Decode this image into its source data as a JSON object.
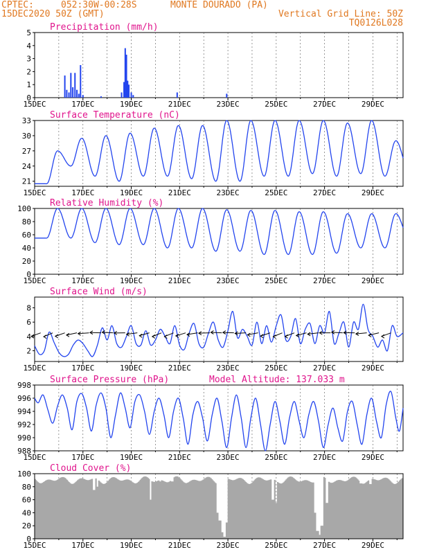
{
  "header": {
    "source": "CPTEC:",
    "coords": "052:30W-00:28S",
    "station": "MONTE DOURADO (PA)",
    "datetime": "15DEC2020 50Z (GMT)",
    "grid_line": "Vertical Grid Line: 50Z",
    "code": "TQ0126L028"
  },
  "colors": {
    "header": "#e07820",
    "title": "#e0148c",
    "line": "#2244ee",
    "cloud": "#a8a8a8",
    "axis": "#000000"
  },
  "chart_data": [
    {
      "name": "precipitation",
      "type": "bar",
      "title": "Precipitation (mm/h)",
      "ylim": [
        0,
        5
      ],
      "yticks": [
        0,
        1,
        2,
        3,
        4,
        5
      ],
      "xlabels": [
        "15DEC",
        "17DEC",
        "19DEC",
        "21DEC",
        "23DEC",
        "25DEC",
        "27DEC",
        "29DEC"
      ],
      "x_day_range": [
        15,
        30.25
      ],
      "bars": [
        {
          "day": 16.25,
          "value": 1.7
        },
        {
          "day": 16.33,
          "value": 0.6
        },
        {
          "day": 16.42,
          "value": 0.4
        },
        {
          "day": 16.5,
          "value": 1.9
        },
        {
          "day": 16.58,
          "value": 0.8
        },
        {
          "day": 16.67,
          "value": 1.9
        },
        {
          "day": 16.75,
          "value": 0.6
        },
        {
          "day": 16.83,
          "value": 0.3
        },
        {
          "day": 16.9,
          "value": 2.5
        },
        {
          "day": 17.0,
          "value": 0.2
        },
        {
          "day": 17.75,
          "value": 0.1
        },
        {
          "day": 18.6,
          "value": 0.4
        },
        {
          "day": 18.7,
          "value": 1.2
        },
        {
          "day": 18.75,
          "value": 3.8
        },
        {
          "day": 18.8,
          "value": 3.3
        },
        {
          "day": 18.85,
          "value": 1.3
        },
        {
          "day": 18.9,
          "value": 1.0
        },
        {
          "day": 19.0,
          "value": 0.4
        },
        {
          "day": 19.08,
          "value": 0.2
        },
        {
          "day": 20.9,
          "value": 0.4
        },
        {
          "day": 22.95,
          "value": 0.3
        }
      ]
    },
    {
      "name": "temperature",
      "type": "line",
      "title": "Surface Temperature (nC)",
      "ylim": [
        20,
        33
      ],
      "yticks": [
        21,
        24,
        27,
        30,
        33
      ],
      "xlabels": [
        "15DEC",
        "17DEC",
        "19DEC",
        "21DEC",
        "23DEC",
        "25DEC",
        "27DEC",
        "29DEC"
      ],
      "x_day_range": [
        15,
        30.25
      ],
      "cycles": [
        [
          15.5,
          21.5,
          20.5
        ],
        [
          16.5,
          27,
          24
        ],
        [
          17.5,
          29.5,
          22
        ],
        [
          18.5,
          30,
          21
        ],
        [
          19.5,
          30.5,
          22
        ],
        [
          20.5,
          31.5,
          22
        ],
        [
          21.5,
          32,
          21.5
        ],
        [
          22.5,
          32,
          21
        ],
        [
          23.5,
          33,
          21
        ],
        [
          24.5,
          33,
          22
        ],
        [
          25.5,
          33,
          22
        ],
        [
          26.5,
          33,
          22.5
        ],
        [
          27.5,
          33,
          22
        ],
        [
          28.5,
          32.5,
          22.5
        ],
        [
          29.5,
          33,
          22
        ],
        [
          30.5,
          29,
          23
        ]
      ]
    },
    {
      "name": "humidity",
      "type": "line",
      "title": "Relative Humidity (%)",
      "ylim": [
        0,
        100
      ],
      "yticks": [
        0,
        20,
        40,
        60,
        80,
        100
      ],
      "xlabels": [
        "15DEC",
        "17DEC",
        "19DEC",
        "21DEC",
        "23DEC",
        "25DEC",
        "27DEC",
        "29DEC"
      ],
      "x_day_range": [
        15,
        30.25
      ],
      "cycles": [
        [
          15.5,
          100,
          55
        ],
        [
          16.5,
          100,
          55
        ],
        [
          17.5,
          100,
          48
        ],
        [
          18.5,
          100,
          45
        ],
        [
          19.5,
          100,
          45
        ],
        [
          20.5,
          100,
          40
        ],
        [
          21.5,
          100,
          40
        ],
        [
          22.5,
          100,
          35
        ],
        [
          23.5,
          98,
          35
        ],
        [
          24.5,
          97,
          30
        ],
        [
          25.5,
          97,
          30
        ],
        [
          26.5,
          95,
          30
        ],
        [
          27.5,
          95,
          32
        ],
        [
          28.5,
          92,
          40
        ],
        [
          29.5,
          92,
          40
        ],
        [
          30.5,
          92,
          55
        ]
      ]
    },
    {
      "name": "wind",
      "type": "line",
      "title": "Surface Wind (m/s)",
      "ylim": [
        0.5,
        9.5
      ],
      "yticks": [
        2,
        4,
        6,
        8
      ],
      "xlabels": [
        "15DEC",
        "17DEC",
        "19DEC",
        "21DEC",
        "23DEC",
        "25DEC",
        "27DEC",
        "29DEC"
      ],
      "x_day_range": [
        15,
        30.25
      ],
      "points": [
        [
          15.0,
          2.7
        ],
        [
          15.2,
          1.5
        ],
        [
          15.4,
          2.0
        ],
        [
          15.6,
          4.6
        ],
        [
          15.8,
          3.2
        ],
        [
          16.0,
          1.8
        ],
        [
          16.2,
          1.2
        ],
        [
          16.4,
          1.5
        ],
        [
          16.6,
          2.8
        ],
        [
          16.8,
          3.5
        ],
        [
          17.0,
          3.0
        ],
        [
          17.2,
          2.0
        ],
        [
          17.4,
          1.2
        ],
        [
          17.6,
          2.8
        ],
        [
          17.8,
          5.2
        ],
        [
          18.0,
          3.5
        ],
        [
          18.2,
          5.5
        ],
        [
          18.4,
          3.0
        ],
        [
          18.6,
          2.5
        ],
        [
          18.8,
          4.0
        ],
        [
          19.0,
          5.5
        ],
        [
          19.2,
          3.0
        ],
        [
          19.4,
          2.8
        ],
        [
          19.6,
          4.8
        ],
        [
          19.8,
          2.8
        ],
        [
          20.0,
          3.5
        ],
        [
          20.2,
          5.0
        ],
        [
          20.4,
          4.0
        ],
        [
          20.6,
          3.0
        ],
        [
          20.8,
          5.5
        ],
        [
          21.0,
          2.8
        ],
        [
          21.2,
          2.2
        ],
        [
          21.4,
          4.5
        ],
        [
          21.6,
          5.8
        ],
        [
          21.8,
          3.0
        ],
        [
          22.0,
          2.5
        ],
        [
          22.2,
          4.5
        ],
        [
          22.4,
          6.0
        ],
        [
          22.6,
          3.5
        ],
        [
          22.8,
          2.5
        ],
        [
          23.0,
          4.8
        ],
        [
          23.2,
          7.5
        ],
        [
          23.4,
          3.8
        ],
        [
          23.6,
          5.0
        ],
        [
          23.8,
          4.0
        ],
        [
          24.0,
          2.8
        ],
        [
          24.2,
          6.0
        ],
        [
          24.4,
          3.0
        ],
        [
          24.6,
          5.5
        ],
        [
          24.8,
          3.2
        ],
        [
          25.0,
          5.5
        ],
        [
          25.2,
          7.0
        ],
        [
          25.4,
          3.5
        ],
        [
          25.6,
          4.0
        ],
        [
          25.8,
          6.5
        ],
        [
          26.0,
          3.0
        ],
        [
          26.2,
          5.0
        ],
        [
          26.4,
          5.8
        ],
        [
          26.6,
          3.0
        ],
        [
          26.8,
          5.5
        ],
        [
          27.0,
          4.5
        ],
        [
          27.2,
          7.5
        ],
        [
          27.4,
          3.0
        ],
        [
          27.6,
          4.5
        ],
        [
          27.8,
          6.0
        ],
        [
          28.0,
          2.5
        ],
        [
          28.2,
          6.0
        ],
        [
          28.4,
          5.0
        ],
        [
          28.6,
          8.5
        ],
        [
          28.8,
          5.0
        ],
        [
          29.0,
          4.0
        ],
        [
          29.2,
          2.5
        ],
        [
          29.4,
          3.5
        ],
        [
          29.6,
          2.0
        ],
        [
          29.8,
          5.5
        ],
        [
          30.0,
          4.0
        ],
        [
          30.25,
          4.5
        ]
      ],
      "arrow_days": [
        15.25,
        15.75,
        16.25,
        16.75,
        17.25,
        17.75,
        18.25,
        18.75,
        19.25,
        19.75,
        20.25,
        20.75,
        21.25,
        21.75,
        22.25,
        22.75,
        23.25,
        23.75,
        24.25,
        24.75,
        25.25,
        25.75,
        26.25,
        26.75,
        27.25,
        27.75,
        28.25,
        28.75,
        29.25,
        29.75
      ]
    },
    {
      "name": "pressure",
      "type": "line",
      "title": "Surface Pressure (hPa)",
      "altitude": "Model Altitude: 137.033 m",
      "ylim": [
        988,
        998
      ],
      "yticks": [
        988,
        990,
        992,
        994,
        996,
        998
      ],
      "xlabels": [
        "15DEC",
        "17DEC",
        "19DEC",
        "21DEC",
        "23DEC",
        "25DEC",
        "27DEC",
        "29DEC"
      ],
      "x_day_range": [
        15,
        30.25
      ],
      "points": [
        [
          15.0,
          996.0
        ],
        [
          15.15,
          995.3
        ],
        [
          15.35,
          996.5
        ],
        [
          15.55,
          994.2
        ],
        [
          15.75,
          992.2
        ],
        [
          15.95,
          994.8
        ],
        [
          16.15,
          996.5
        ],
        [
          16.35,
          994.5
        ],
        [
          16.55,
          991.2
        ],
        [
          16.75,
          995.5
        ],
        [
          16.95,
          996.7
        ],
        [
          17.15,
          994.5
        ],
        [
          17.35,
          991.0
        ],
        [
          17.55,
          995.0
        ],
        [
          17.75,
          996.8
        ],
        [
          17.95,
          994.5
        ],
        [
          18.15,
          990.0
        ],
        [
          18.35,
          993.5
        ],
        [
          18.55,
          996.8
        ],
        [
          18.75,
          994.5
        ],
        [
          18.95,
          991.5
        ],
        [
          19.15,
          995.5
        ],
        [
          19.35,
          996.5
        ],
        [
          19.55,
          994.0
        ],
        [
          19.75,
          990.5
        ],
        [
          19.95,
          994.0
        ],
        [
          20.15,
          996.0
        ],
        [
          20.35,
          993.5
        ],
        [
          20.55,
          990.0
        ],
        [
          20.75,
          994.0
        ],
        [
          20.95,
          996.0
        ],
        [
          21.15,
          993.0
        ],
        [
          21.35,
          989.0
        ],
        [
          21.55,
          993.5
        ],
        [
          21.75,
          995.5
        ],
        [
          21.95,
          993.0
        ],
        [
          22.15,
          989.5
        ],
        [
          22.35,
          993.5
        ],
        [
          22.55,
          996.0
        ],
        [
          22.75,
          992.5
        ],
        [
          22.95,
          988.5
        ],
        [
          23.15,
          993.0
        ],
        [
          23.35,
          996.5
        ],
        [
          23.55,
          993.0
        ],
        [
          23.75,
          988.5
        ],
        [
          23.95,
          993.0
        ],
        [
          24.15,
          996.0
        ],
        [
          24.35,
          992.0
        ],
        [
          24.55,
          988.0
        ],
        [
          24.75,
          992.0
        ],
        [
          24.95,
          995.5
        ],
        [
          25.15,
          992.5
        ],
        [
          25.35,
          989.0
        ],
        [
          25.55,
          993.0
        ],
        [
          25.75,
          995.5
        ],
        [
          25.95,
          992.5
        ],
        [
          26.15,
          990.0
        ],
        [
          26.35,
          993.5
        ],
        [
          26.55,
          995.5
        ],
        [
          26.75,
          992.5
        ],
        [
          26.95,
          988.5
        ],
        [
          27.15,
          992.0
        ],
        [
          27.35,
          994.5
        ],
        [
          27.55,
          991.5
        ],
        [
          27.75,
          989.5
        ],
        [
          27.95,
          994.0
        ],
        [
          28.15,
          995.5
        ],
        [
          28.35,
          992.0
        ],
        [
          28.55,
          989.0
        ],
        [
          28.75,
          993.5
        ],
        [
          28.95,
          996.0
        ],
        [
          29.15,
          992.5
        ],
        [
          29.35,
          990.0
        ],
        [
          29.55,
          995.0
        ],
        [
          29.75,
          997.0
        ],
        [
          29.95,
          993.0
        ],
        [
          30.1,
          991.0
        ],
        [
          30.25,
          994.5
        ]
      ]
    },
    {
      "name": "cloud",
      "type": "area",
      "title": "Cloud Cover (%)",
      "ylim": [
        0,
        100
      ],
      "yticks": [
        0,
        20,
        40,
        60,
        80,
        100
      ],
      "xlabels": [
        "15DEC",
        "17DEC",
        "19DEC",
        "21DEC",
        "23DEC",
        "25DEC",
        "27DEC",
        "29DEC"
      ],
      "x_day_range": [
        15,
        30.25
      ],
      "base_level": 90,
      "dips": [
        [
          17.45,
          75
        ],
        [
          17.6,
          80
        ],
        [
          19.8,
          60
        ],
        [
          20.2,
          88
        ],
        [
          20.7,
          88
        ],
        [
          22.55,
          40
        ],
        [
          22.65,
          28
        ],
        [
          22.75,
          10
        ],
        [
          22.85,
          3
        ],
        [
          22.95,
          25
        ],
        [
          24.85,
          60
        ],
        [
          25.0,
          55
        ],
        [
          26.6,
          40
        ],
        [
          26.7,
          12
        ],
        [
          26.8,
          6
        ],
        [
          26.9,
          20
        ],
        [
          27.1,
          55
        ],
        [
          28.5,
          85
        ],
        [
          28.9,
          84
        ]
      ]
    }
  ]
}
